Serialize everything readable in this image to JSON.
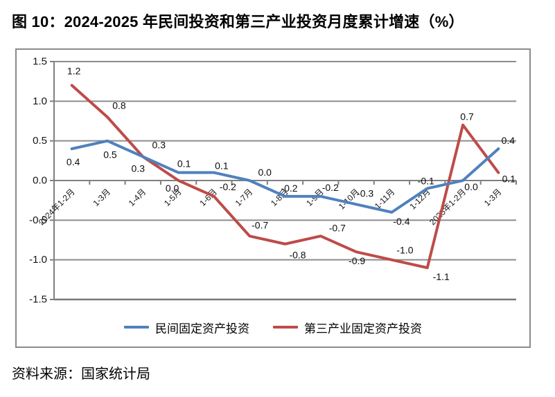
{
  "title": "图 10：2024-2025 年民间投资和第三产业投资月度累计增速（%）",
  "source": "资料来源：国家统计局",
  "chart_data": {
    "type": "line",
    "title": "图 10：2024-2025 年民间投资和第三产业投资月度累计增速（%）",
    "categories": [
      "2024年1-2月",
      "1-3月",
      "1-4月",
      "1-5月",
      "1-6月",
      "1-7月",
      "1-8月",
      "1-9月",
      "1-10月",
      "1-11月",
      "1-12月",
      "2025年1-2月",
      "1-3月"
    ],
    "series": [
      {
        "name": "民间固定资产投资",
        "color": "#4F81BD",
        "values": [
          0.4,
          0.5,
          0.3,
          0.1,
          0.1,
          0.0,
          -0.2,
          -0.2,
          -0.3,
          -0.4,
          -0.1,
          0.0,
          0.4
        ]
      },
      {
        "name": "第三产业固定资产投资",
        "color": "#BE4B48",
        "values": [
          1.2,
          0.8,
          0.3,
          0.0,
          -0.2,
          -0.7,
          -0.8,
          -0.7,
          -0.9,
          -1.0,
          -1.1,
          0.7,
          0.1
        ]
      }
    ],
    "ylim": [
      -1.5,
      1.5
    ],
    "ytick_step": 0.5,
    "y_ticks": [
      "1.5",
      "1.0",
      "0.5",
      "0.0",
      "-0.5",
      "-1.0",
      "-1.5"
    ],
    "grid": true,
    "legend_position": "bottom-inside",
    "data_labels": true,
    "axis_color": "#7f7f7f",
    "grid_color": "#8c8c8c",
    "frame_color": "#8a8a8a",
    "label_color": "#0d0d0d"
  }
}
